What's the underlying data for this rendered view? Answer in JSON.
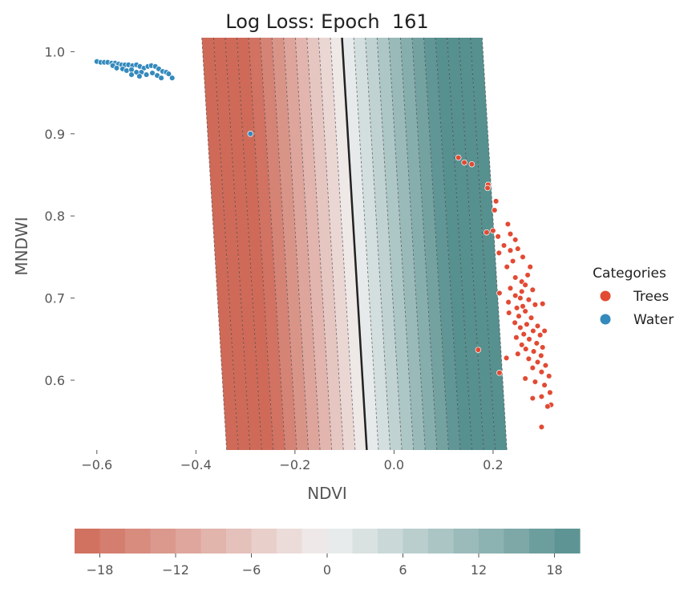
{
  "chart_data": {
    "type": "scatter",
    "title": "Log Loss: Epoch  161",
    "xlabel": "NDVI",
    "ylabel": "MNDWI",
    "xlim": [
      -0.645,
      0.375
    ],
    "ylim": [
      0.515,
      1.017
    ],
    "x_ticks": [
      -0.6,
      -0.4,
      -0.2,
      0.0,
      0.2
    ],
    "x_tick_labels": [
      "−0.6",
      "−0.4",
      "−0.2",
      "0.0",
      "0.2"
    ],
    "y_ticks": [
      0.6,
      0.7,
      0.8,
      0.9,
      1.0
    ],
    "y_tick_labels": [
      "0.6",
      "0.7",
      "0.8",
      "0.9",
      "1.0"
    ],
    "grid": false,
    "decision_boundary": [
      [
        -0.105,
        1.017
      ],
      [
        -0.055,
        0.515
      ]
    ],
    "field": {
      "description": "value increases with NDVI; zero along decision boundary",
      "gradient_per_ndvi": -106,
      "contour_step": 2.5
    },
    "legend": {
      "title": "Categories",
      "placement": "right",
      "entries": [
        {
          "label": "Trees",
          "color": "#e24a33"
        },
        {
          "label": "Water",
          "color": "#348abd"
        }
      ]
    },
    "series": [
      {
        "name": "Trees",
        "color": "#e24a33",
        "points": [
          [
            0.13,
            0.871
          ],
          [
            0.142,
            0.865
          ],
          [
            0.157,
            0.863
          ],
          [
            0.19,
            0.838
          ],
          [
            0.189,
            0.834
          ],
          [
            0.206,
            0.818
          ],
          [
            0.203,
            0.807
          ],
          [
            0.23,
            0.79
          ],
          [
            0.2,
            0.782
          ],
          [
            0.21,
            0.775
          ],
          [
            0.187,
            0.78
          ],
          [
            0.235,
            0.778
          ],
          [
            0.245,
            0.771
          ],
          [
            0.222,
            0.764
          ],
          [
            0.235,
            0.758
          ],
          [
            0.212,
            0.755
          ],
          [
            0.25,
            0.76
          ],
          [
            0.24,
            0.745
          ],
          [
            0.26,
            0.75
          ],
          [
            0.228,
            0.738
          ],
          [
            0.245,
            0.725
          ],
          [
            0.27,
            0.728
          ],
          [
            0.258,
            0.72
          ],
          [
            0.235,
            0.712
          ],
          [
            0.265,
            0.716
          ],
          [
            0.28,
            0.71
          ],
          [
            0.245,
            0.703
          ],
          [
            0.213,
            0.706
          ],
          [
            0.255,
            0.7
          ],
          [
            0.272,
            0.698
          ],
          [
            0.231,
            0.695
          ],
          [
            0.26,
            0.69
          ],
          [
            0.248,
            0.688
          ],
          [
            0.285,
            0.692
          ],
          [
            0.232,
            0.682
          ],
          [
            0.265,
            0.684
          ],
          [
            0.252,
            0.678
          ],
          [
            0.277,
            0.676
          ],
          [
            0.3,
            0.693
          ],
          [
            0.244,
            0.67
          ],
          [
            0.268,
            0.668
          ],
          [
            0.29,
            0.666
          ],
          [
            0.255,
            0.664
          ],
          [
            0.281,
            0.66
          ],
          [
            0.262,
            0.656
          ],
          [
            0.295,
            0.655
          ],
          [
            0.247,
            0.652
          ],
          [
            0.273,
            0.65
          ],
          [
            0.288,
            0.645
          ],
          [
            0.258,
            0.643
          ],
          [
            0.3,
            0.64
          ],
          [
            0.266,
            0.638
          ],
          [
            0.282,
            0.635
          ],
          [
            0.25,
            0.632
          ],
          [
            0.297,
            0.63
          ],
          [
            0.272,
            0.626
          ],
          [
            0.227,
            0.627
          ],
          [
            0.29,
            0.622
          ],
          [
            0.306,
            0.618
          ],
          [
            0.28,
            0.615
          ],
          [
            0.298,
            0.61
          ],
          [
            0.265,
            0.602
          ],
          [
            0.313,
            0.605
          ],
          [
            0.285,
            0.598
          ],
          [
            0.304,
            0.594
          ],
          [
            0.315,
            0.585
          ],
          [
            0.298,
            0.58
          ],
          [
            0.28,
            0.578
          ],
          [
            0.317,
            0.57
          ],
          [
            0.31,
            0.568
          ],
          [
            0.213,
            0.609
          ],
          [
            0.17,
            0.637
          ],
          [
            0.298,
            0.543
          ],
          [
            0.304,
            0.66
          ],
          [
            0.258,
            0.708
          ],
          [
            0.275,
            0.738
          ]
        ]
      },
      {
        "name": "Water",
        "color": "#348abd",
        "points": [
          [
            -0.6,
            0.988
          ],
          [
            -0.592,
            0.987
          ],
          [
            -0.585,
            0.987
          ],
          [
            -0.578,
            0.987
          ],
          [
            -0.57,
            0.986
          ],
          [
            -0.563,
            0.986
          ],
          [
            -0.556,
            0.985
          ],
          [
            -0.55,
            0.984
          ],
          [
            -0.543,
            0.984
          ],
          [
            -0.536,
            0.984
          ],
          [
            -0.528,
            0.983
          ],
          [
            -0.52,
            0.984
          ],
          [
            -0.513,
            0.982
          ],
          [
            -0.505,
            0.98
          ],
          [
            -0.497,
            0.982
          ],
          [
            -0.49,
            0.983
          ],
          [
            -0.482,
            0.982
          ],
          [
            -0.475,
            0.979
          ],
          [
            -0.467,
            0.976
          ],
          [
            -0.46,
            0.975
          ],
          [
            -0.455,
            0.973
          ],
          [
            -0.568,
            0.983
          ],
          [
            -0.56,
            0.98
          ],
          [
            -0.548,
            0.979
          ],
          [
            -0.54,
            0.977
          ],
          [
            -0.53,
            0.978
          ],
          [
            -0.52,
            0.975
          ],
          [
            -0.51,
            0.975
          ],
          [
            -0.5,
            0.972
          ],
          [
            -0.488,
            0.974
          ],
          [
            -0.478,
            0.971
          ],
          [
            -0.53,
            0.972
          ],
          [
            -0.514,
            0.97
          ],
          [
            -0.47,
            0.968
          ],
          [
            -0.448,
            0.968
          ],
          [
            -0.29,
            0.9
          ]
        ]
      }
    ],
    "colorbar": {
      "range": [
        -20,
        20
      ],
      "steps": 20,
      "ticks": [
        -18,
        -12,
        -6,
        0,
        6,
        12,
        18
      ],
      "tick_labels": [
        "−18",
        "−12",
        "−6",
        "0",
        "6",
        "12",
        "18"
      ],
      "low_color": "#cf6a58",
      "mid_color": "#f0f0f0",
      "high_color": "#56908f"
    }
  }
}
